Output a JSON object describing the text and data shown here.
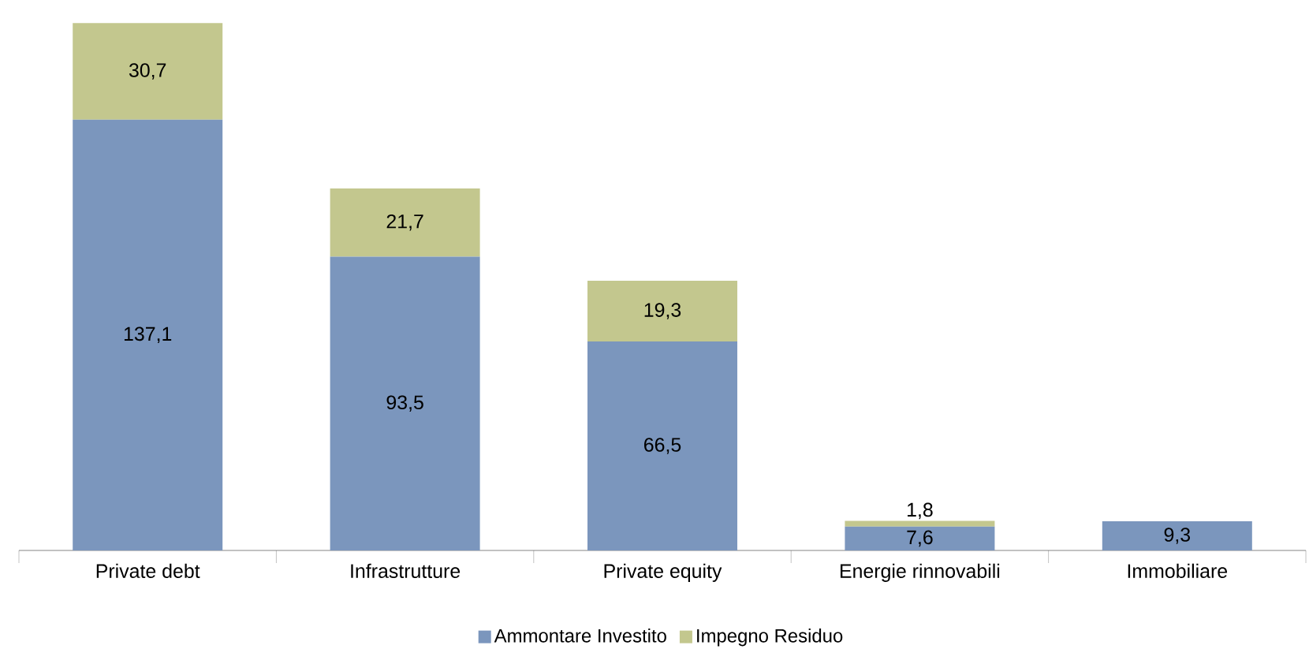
{
  "chart_data": {
    "type": "bar",
    "stacked": true,
    "legend": "bottom",
    "categories": [
      "Private debt",
      "Infrastrutture",
      "Private equity",
      "Energie rinnovabili",
      "Immobiliare"
    ],
    "series": [
      {
        "name": "Ammontare Investito",
        "color": "#7b96bd",
        "values": [
          137.1,
          93.5,
          66.5,
          7.6,
          9.3
        ],
        "value_labels": [
          "137,1",
          "93,5",
          "66,5",
          "7,6",
          "9,3"
        ]
      },
      {
        "name": "Impegno Residuo",
        "color": "#c3c78e",
        "values": [
          30.7,
          21.7,
          19.3,
          1.8,
          null
        ],
        "value_labels": [
          "30,7",
          "21,7",
          "19,3",
          "1,8",
          null
        ]
      }
    ]
  }
}
